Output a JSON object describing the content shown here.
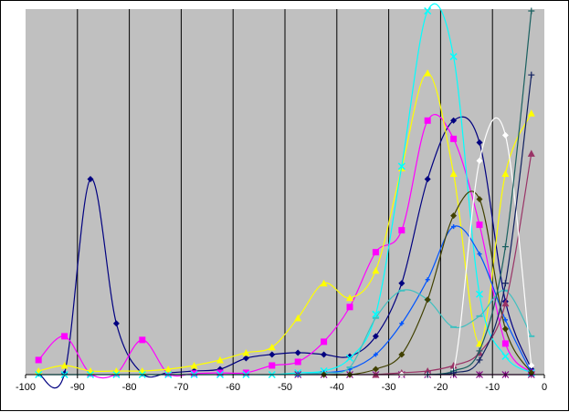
{
  "chart_data": {
    "type": "line",
    "title": "",
    "xlabel": "",
    "ylabel": "",
    "xlim": [
      -100,
      0
    ],
    "ylim": [
      0,
      100
    ],
    "xticks": [
      -100,
      -90,
      -80,
      -70,
      -60,
      -50,
      -40,
      -30,
      -20,
      -10,
      0
    ],
    "xtick_labels": [
      "-100",
      "-90",
      "-80",
      "-70",
      "-60",
      "-50",
      "-40",
      "-30",
      "-20",
      "-10",
      "0"
    ],
    "vertical_grid": true,
    "horizontal_grid": false,
    "legend": "none",
    "plot_background": "#c0c0c0",
    "series": [
      {
        "color": "#000080",
        "marker": "diamond",
        "x": [
          -97.5,
          -92.5,
          -87.5,
          -82.5,
          -77.5,
          -72.5,
          -67.5,
          -62.5,
          -57.5,
          -52.5,
          -47.5,
          -42.5,
          -37.5,
          -32.5,
          -27.5,
          -22.5,
          -17.5,
          -12.5,
          -7.5,
          -2.5
        ],
        "y": [
          0.3,
          0.3,
          53.5,
          14.0,
          0.3,
          0.5,
          1.0,
          1.5,
          4.5,
          5.5,
          6.0,
          5.5,
          5.0,
          10.5,
          25.0,
          53.5,
          69.5,
          63.5,
          20.0,
          1.5
        ]
      },
      {
        "color": "#ff00ff",
        "marker": "square",
        "x": [
          -97.5,
          -92.5,
          -87.5,
          -82.5,
          -77.5,
          -72.5,
          -67.5,
          -62.5,
          -57.5,
          -52.5,
          -47.5,
          -42.5,
          -37.5,
          -32.5,
          -27.5,
          -22.5,
          -17.5,
          -12.5,
          -7.5,
          -2.5
        ],
        "y": [
          4.0,
          10.5,
          0.3,
          0.3,
          9.5,
          0.3,
          0.3,
          0.5,
          0.5,
          2.5,
          3.5,
          9.0,
          18.5,
          33.5,
          39.5,
          69.5,
          64.5,
          41.0,
          8.5,
          0.5
        ]
      },
      {
        "color": "#ffff00",
        "marker": "triangle",
        "x": [
          -97.5,
          -92.5,
          -87.5,
          -82.5,
          -77.5,
          -72.5,
          -67.5,
          -62.5,
          -57.5,
          -52.5,
          -47.5,
          -42.5,
          -37.5,
          -32.5,
          -27.5,
          -22.5,
          -17.5,
          -12.5,
          -7.5,
          -2.5
        ],
        "y": [
          1.0,
          2.5,
          1.0,
          1.0,
          1.0,
          1.5,
          2.5,
          4.0,
          6.0,
          7.5,
          15.5,
          25.0,
          21.0,
          28.5,
          56.5,
          82.5,
          55.0,
          8.5,
          55.0,
          71.5
        ]
      },
      {
        "color": "#00ffff",
        "marker": "x",
        "x": [
          -97.5,
          -92.5,
          -87.5,
          -82.5,
          -77.5,
          -72.5,
          -67.5,
          -62.5,
          -57.5,
          -52.5,
          -47.5,
          -42.5,
          -37.5,
          -32.5,
          -27.5,
          -22.5,
          -17.5,
          -12.5,
          -7.5,
          -2.5
        ],
        "y": [
          0.0,
          0.0,
          0.0,
          0.0,
          0.0,
          0.0,
          0.0,
          0.0,
          0.0,
          0.0,
          0.5,
          1.0,
          4.5,
          16.5,
          57.0,
          99.5,
          87.0,
          22.0,
          5.0,
          0.5
        ]
      },
      {
        "color": "#800080",
        "marker": "star",
        "x": [
          -47.5,
          -42.5,
          -37.5,
          -32.5,
          -27.5,
          -22.5,
          -17.5,
          -12.5,
          -7.5,
          -2.5
        ],
        "y": [
          0.0,
          0.0,
          0.0,
          0.0,
          0.0,
          0.0,
          0.0,
          0.0,
          0.0,
          0.0
        ]
      },
      {
        "color": "#0055ff",
        "marker": "cross",
        "x": [
          -47.5,
          -42.5,
          -37.5,
          -32.5,
          -27.5,
          -22.5,
          -17.5,
          -12.5,
          -7.5,
          -2.5
        ],
        "y": [
          0.0,
          0.5,
          1.5,
          5.5,
          14.0,
          26.0,
          40.5,
          33.0,
          15.0,
          0.5
        ]
      },
      {
        "color": "#40c0c0",
        "marker": "dash",
        "x": [
          -47.5,
          -42.5,
          -37.5,
          -32.5,
          -27.5,
          -22.5,
          -17.5,
          -12.5,
          -7.5,
          -2.5
        ],
        "y": [
          0.0,
          0.5,
          2.0,
          15.5,
          23.0,
          20.5,
          13.0,
          16.0,
          23.0,
          10.5
        ]
      },
      {
        "color": "#404000",
        "marker": "diamond",
        "x": [
          -42.5,
          -37.5,
          -32.5,
          -27.5,
          -22.5,
          -17.5,
          -12.5,
          -7.5,
          -2.5
        ],
        "y": [
          0.0,
          0.0,
          1.5,
          5.5,
          20.5,
          43.5,
          48.0,
          12.5,
          0.5
        ]
      },
      {
        "color": "#993366",
        "marker": "triangle",
        "x": [
          -32.5,
          -27.5,
          -22.5,
          -17.5,
          -12.5,
          -7.5,
          -2.5
        ],
        "y": [
          0.0,
          0.5,
          1.0,
          2.5,
          6.0,
          19.5,
          60.5
        ]
      },
      {
        "color": "#ffffff",
        "marker": "diamond",
        "x": [
          -27.5,
          -22.5,
          -17.5,
          -12.5,
          -7.5,
          -2.5
        ],
        "y": [
          0.0,
          0.0,
          1.0,
          58.5,
          65.5,
          2.5
        ]
      },
      {
        "color": "#1a6060",
        "marker": "plus",
        "x": [
          -22.5,
          -17.5,
          -12.5,
          -7.5,
          -2.5
        ],
        "y": [
          0.0,
          1.0,
          6.5,
          35.0,
          99.5
        ]
      },
      {
        "color": "#102060",
        "marker": "plus",
        "x": [
          -22.5,
          -17.5,
          -12.5,
          -7.5,
          -2.5
        ],
        "y": [
          0.0,
          0.5,
          4.0,
          25.0,
          82.0
        ]
      }
    ]
  }
}
